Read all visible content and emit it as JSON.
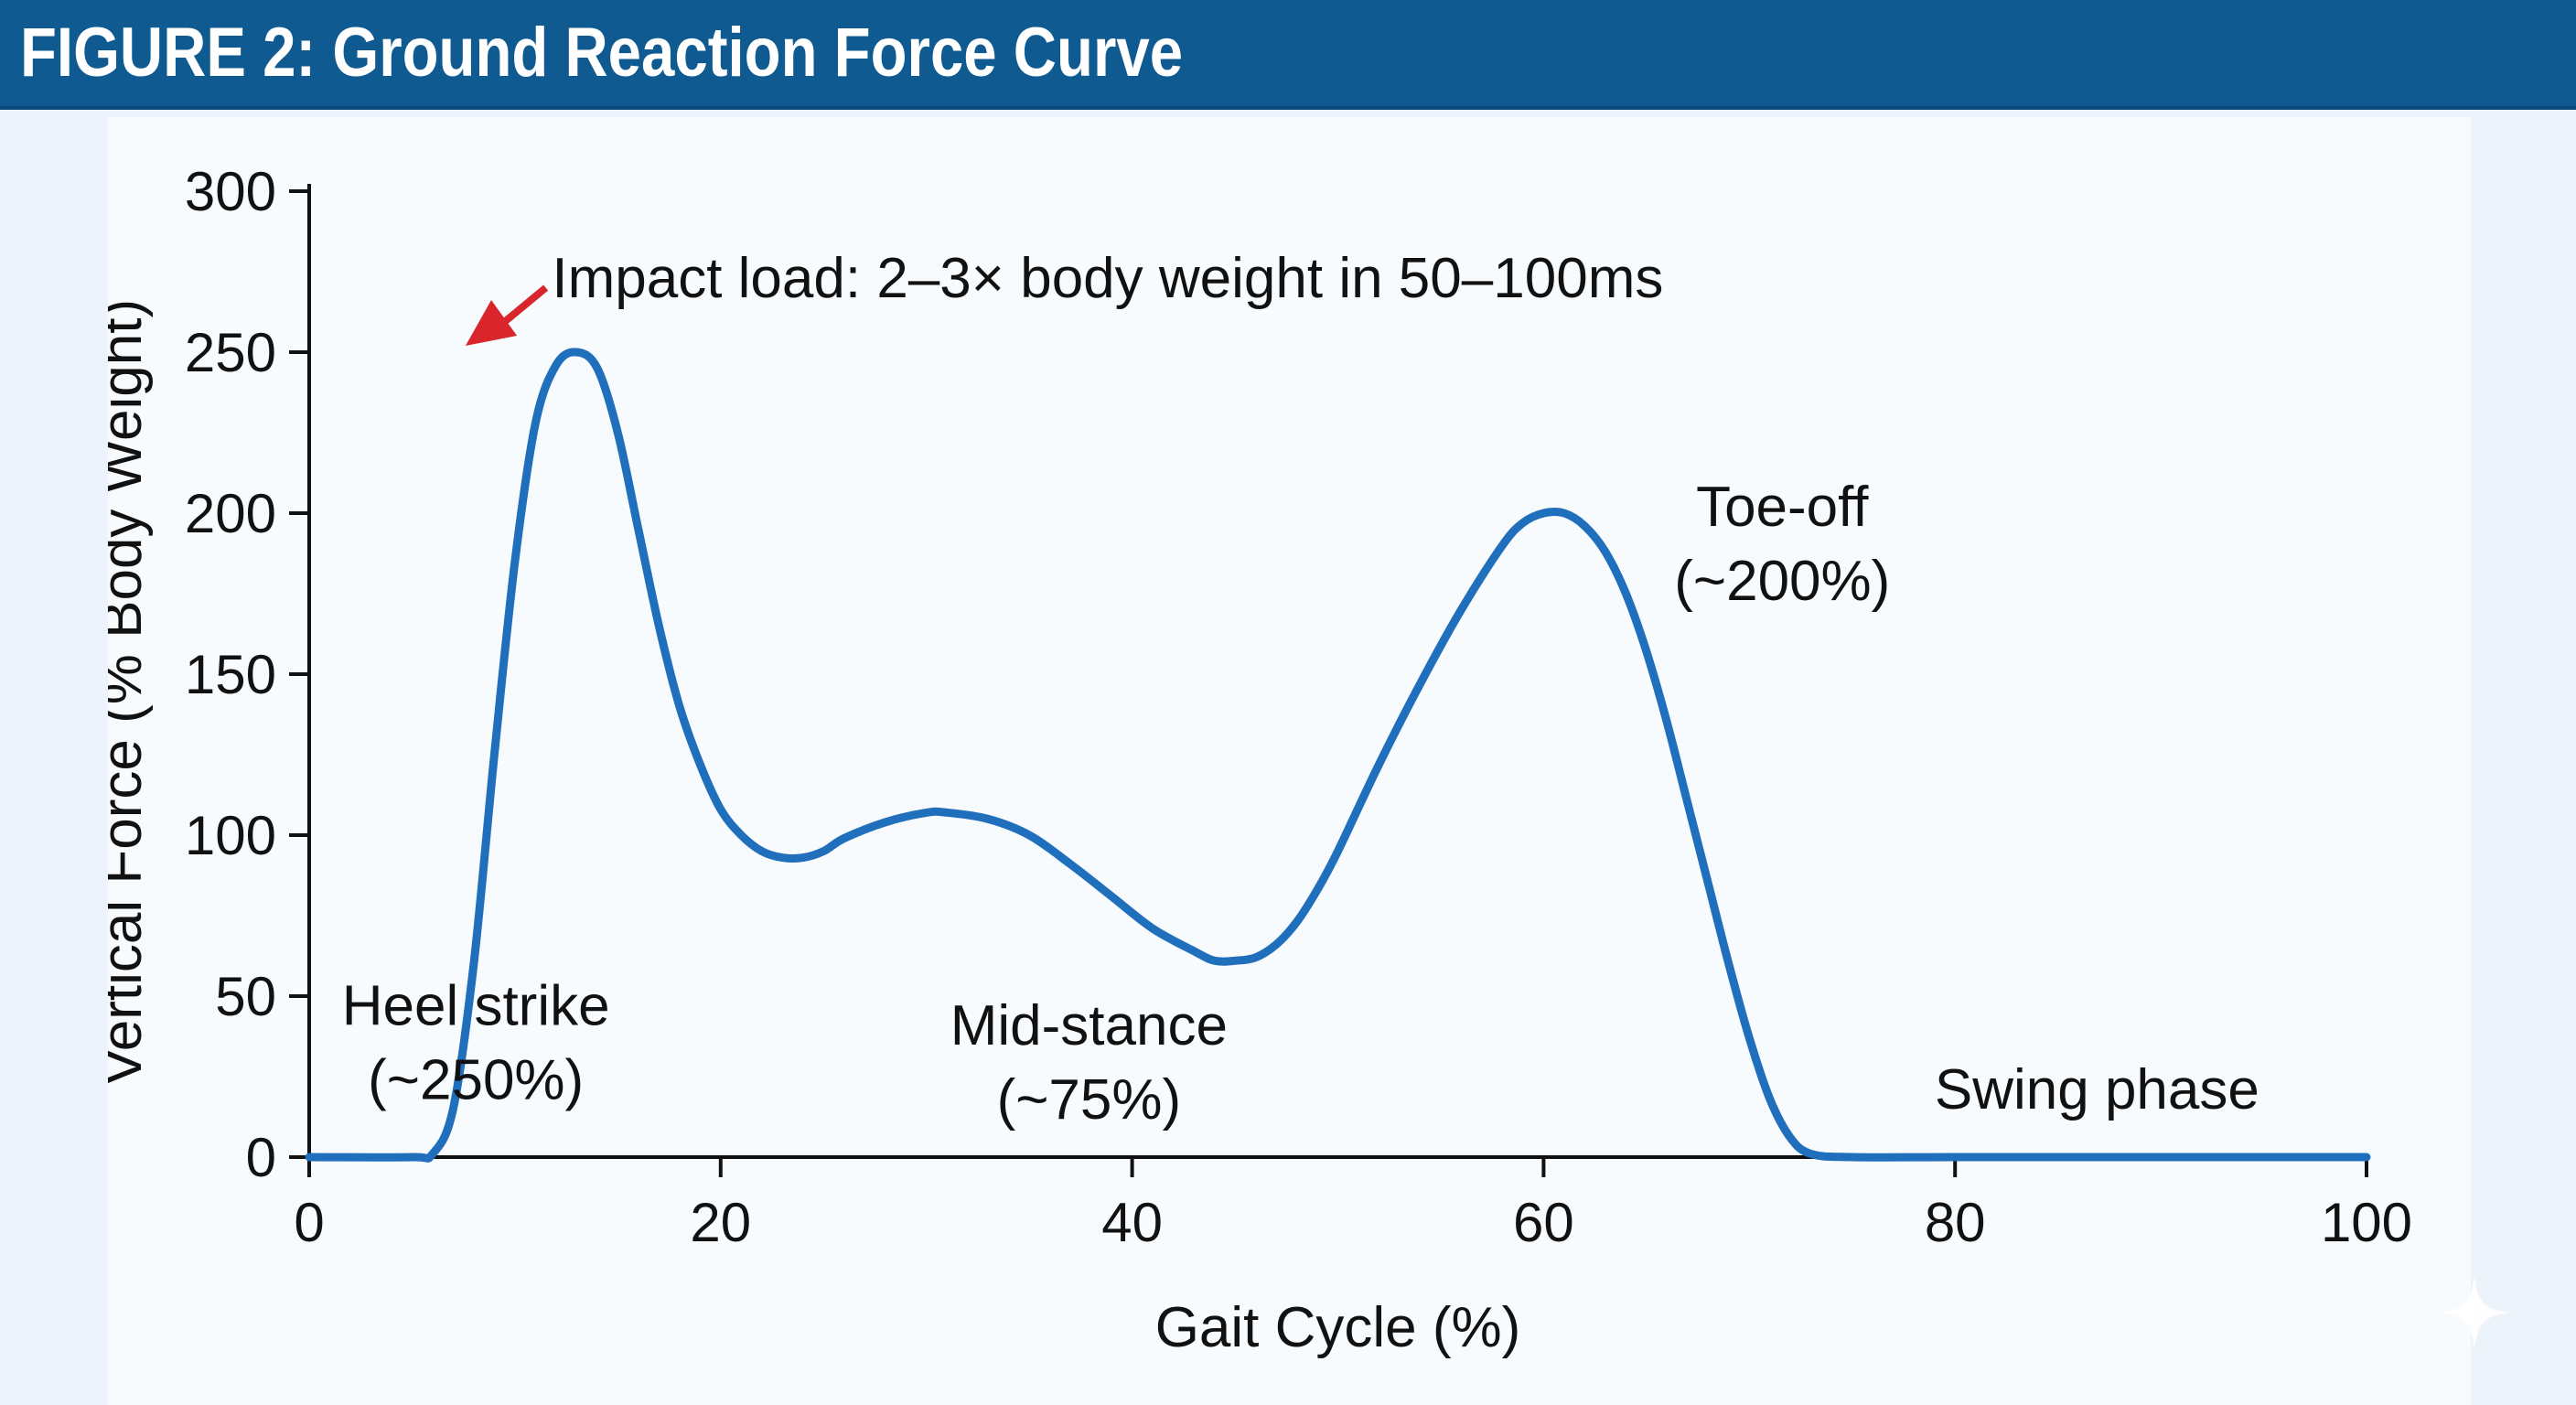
{
  "figure_title": "FIGURE 2: Ground Reaction Force Curve",
  "colors": {
    "header": "#0f5a91",
    "curve": "#1f6fbd",
    "arrow": "#d9262c",
    "background": "#edf3fa"
  },
  "chart_data": {
    "type": "line",
    "title": "FIGURE 2: Ground Reaction Force Curve",
    "xlabel": "Gait Cycle (%)",
    "ylabel": "Vertical Force (% Body Weight)",
    "xlim": [
      0,
      100
    ],
    "ylim": [
      0,
      300
    ],
    "x_ticks": [
      "0",
      "20",
      "40",
      "60",
      "80",
      "100"
    ],
    "y_ticks": [
      "0",
      "50",
      "100",
      "150",
      "200",
      "250",
      "300"
    ],
    "grid": false,
    "series": [
      {
        "x": [
          0,
          5,
          6,
          7,
          8,
          9,
          10,
          11,
          12,
          13,
          14,
          15,
          16,
          17,
          18,
          19,
          20,
          21,
          22,
          23,
          24,
          25,
          26,
          28,
          30,
          31,
          33,
          35,
          37,
          39,
          41,
          43,
          44,
          45,
          46,
          47,
          48,
          49,
          50,
          52,
          54,
          56,
          58,
          59,
          60,
          61,
          62,
          63,
          64,
          65,
          66,
          67,
          68,
          69,
          70,
          71,
          72,
          73,
          75,
          80,
          90,
          100
        ],
        "y": [
          0,
          0,
          1,
          15,
          60,
          125,
          185,
          228,
          246,
          250,
          245,
          225,
          195,
          165,
          140,
          122,
          108,
          100,
          95,
          93,
          93,
          95,
          99,
          104,
          107,
          107,
          105,
          100,
          91,
          81,
          71,
          64,
          61,
          61,
          62,
          66,
          73,
          83,
          95,
          122,
          147,
          170,
          190,
          197,
          200,
          200,
          196,
          188,
          175,
          157,
          135,
          110,
          85,
          60,
          37,
          18,
          6,
          1,
          0,
          0,
          0,
          0
        ]
      }
    ],
    "annotations": {
      "impact": "Impact load: 2–3× body weight in 50–100ms",
      "heel_strike": "Heel strike",
      "heel_strike_value": "(~250%)",
      "mid_stance": "Mid-stance",
      "mid_stance_value": "(~75%)",
      "toe_off": "Toe-off",
      "toe_off_value": "(~200%)",
      "swing": "Swing phase"
    }
  }
}
